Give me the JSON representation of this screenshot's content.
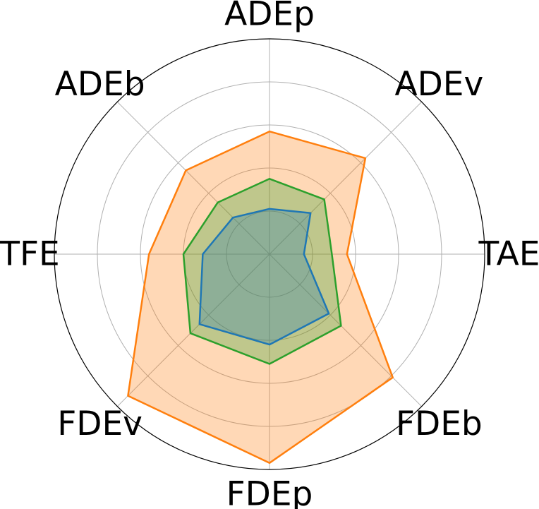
{
  "chart_data": {
    "type": "radar",
    "title": "",
    "axes": [
      "ADEp",
      "ADEv",
      "TAE",
      "FDEb",
      "FDEp",
      "FDEv",
      "TFE",
      "ADEb"
    ],
    "rmax": 1.0,
    "grid_rings": [
      0.2,
      0.4,
      0.6,
      0.8
    ],
    "grid": true,
    "legend": "none",
    "series": [
      {
        "color": "#ff7f0e",
        "fill": true,
        "fill_opacity": 0.3,
        "values": [
          0.57,
          0.63,
          0.36,
          0.81,
          0.97,
          0.93,
          0.56,
          0.55
        ]
      },
      {
        "color": "#2ca02c",
        "fill": true,
        "fill_opacity": 0.3,
        "values": [
          0.35,
          0.36,
          0.29,
          0.47,
          0.51,
          0.52,
          0.4,
          0.34
        ]
      },
      {
        "color": "#1f77b4",
        "fill": true,
        "fill_opacity": 0.3,
        "values": [
          0.21,
          0.27,
          0.16,
          0.39,
          0.42,
          0.46,
          0.31,
          0.24
        ]
      }
    ]
  }
}
